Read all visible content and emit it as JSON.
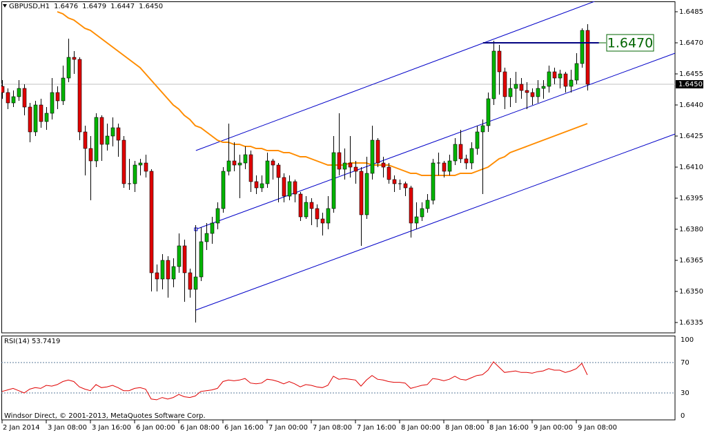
{
  "chart_data": {
    "type": "candlestick",
    "symbol": "GBPUSD,H1",
    "header_values": [
      "1.6476",
      "1.6479",
      "1.6447",
      "1.6450"
    ],
    "categories": [
      "2 Jan 2014",
      null,
      null,
      null,
      null,
      null,
      null,
      null,
      "3 Jan 08:00",
      null,
      null,
      null,
      null,
      null,
      null,
      null,
      "3 Jan 16:00",
      null,
      null,
      null,
      null,
      null,
      null,
      null,
      "6 Jan 00:00",
      null,
      null,
      null,
      null,
      null,
      null,
      null,
      "6 Jan 08:00",
      null,
      null,
      null,
      null,
      null,
      null,
      null,
      "6 Jan 16:00",
      null,
      null,
      null,
      null,
      null,
      null,
      null,
      "7 Jan 00:00",
      null,
      null,
      null,
      null,
      null,
      null,
      null,
      "7 Jan 08:00",
      null,
      null,
      null,
      null,
      null,
      null,
      null,
      "7 Jan 16:00",
      null,
      null,
      null,
      null,
      null,
      null,
      null,
      "8 Jan 00:00",
      null,
      null,
      null,
      null,
      null,
      null,
      null,
      "8 Jan 08:00",
      null,
      null,
      null,
      null,
      null,
      null,
      null,
      "8 Jan 16:00",
      null,
      null,
      null,
      null,
      null,
      null,
      null,
      "9 Jan 00:00",
      null,
      null,
      null,
      null,
      null,
      null,
      null,
      "9 Jan 08:00",
      null,
      null
    ],
    "candles": [
      [
        1.6449,
        1.6452,
        1.6443,
        1.6446
      ],
      [
        1.6446,
        1.6448,
        1.6438,
        1.6441
      ],
      [
        1.6441,
        1.6447,
        1.6439,
        1.6444
      ],
      [
        1.6444,
        1.6452,
        1.6442,
        1.6448
      ],
      [
        1.6448,
        1.645,
        1.6435,
        1.6439
      ],
      [
        1.6439,
        1.6441,
        1.6422,
        1.6427
      ],
      [
        1.6427,
        1.6442,
        1.6425,
        1.644
      ],
      [
        1.644,
        1.6443,
        1.6429,
        1.6432
      ],
      [
        1.6432,
        1.6439,
        1.6428,
        1.6436
      ],
      [
        1.6436,
        1.6453,
        1.6433,
        1.6446
      ],
      [
        1.6446,
        1.6449,
        1.6438,
        1.6442
      ],
      [
        1.6442,
        1.6459,
        1.644,
        1.6453
      ],
      [
        1.6453,
        1.6472,
        1.6451,
        1.6463
      ],
      [
        1.6463,
        1.6466,
        1.6455,
        1.6462
      ],
      [
        1.6462,
        1.6463,
        1.6423,
        1.6427
      ],
      [
        1.6427,
        1.643,
        1.6406,
        1.6419
      ],
      [
        1.6419,
        1.6425,
        1.6394,
        1.6413
      ],
      [
        1.6413,
        1.6436,
        1.641,
        1.6434
      ],
      [
        1.6434,
        1.6435,
        1.6413,
        1.6421
      ],
      [
        1.6421,
        1.6431,
        1.6418,
        1.6425
      ],
      [
        1.6425,
        1.6434,
        1.642,
        1.6429
      ],
      [
        1.6429,
        1.6431,
        1.6415,
        1.6423
      ],
      [
        1.6423,
        1.6425,
        1.64,
        1.6402
      ],
      [
        1.6402,
        1.6414,
        1.6399,
        1.6402
      ],
      [
        1.6402,
        1.6413,
        1.6398,
        1.6411
      ],
      [
        1.6411,
        1.6414,
        1.6406,
        1.6412
      ],
      [
        1.6412,
        1.6416,
        1.6405,
        1.6408
      ],
      [
        1.6408,
        1.6409,
        1.635,
        1.6359
      ],
      [
        1.6359,
        1.6363,
        1.635,
        1.6356
      ],
      [
        1.6356,
        1.6368,
        1.6351,
        1.6365
      ],
      [
        1.6365,
        1.6367,
        1.6347,
        1.6356
      ],
      [
        1.6356,
        1.6366,
        1.6352,
        1.6362
      ],
      [
        1.6362,
        1.6378,
        1.6359,
        1.6372
      ],
      [
        1.6372,
        1.6375,
        1.6345,
        1.6359
      ],
      [
        1.6359,
        1.6361,
        1.6347,
        1.6351
      ],
      [
        1.6351,
        1.6382,
        1.6335,
        1.6357
      ],
      [
        1.6357,
        1.6381,
        1.6355,
        1.6374
      ],
      [
        1.6374,
        1.6383,
        1.637,
        1.6378
      ],
      [
        1.6378,
        1.6386,
        1.6373,
        1.6383
      ],
      [
        1.6383,
        1.6393,
        1.638,
        1.639
      ],
      [
        1.639,
        1.641,
        1.6388,
        1.6408
      ],
      [
        1.6408,
        1.6431,
        1.6406,
        1.6413
      ],
      [
        1.6413,
        1.6422,
        1.6408,
        1.6411
      ],
      [
        1.6411,
        1.6416,
        1.6395,
        1.6412
      ],
      [
        1.6412,
        1.642,
        1.6409,
        1.6416
      ],
      [
        1.6416,
        1.6418,
        1.6398,
        1.6403
      ],
      [
        1.6403,
        1.6406,
        1.6397,
        1.64
      ],
      [
        1.64,
        1.6406,
        1.6398,
        1.6402
      ],
      [
        1.6402,
        1.6417,
        1.64,
        1.6413
      ],
      [
        1.6413,
        1.6414,
        1.6404,
        1.6411
      ],
      [
        1.6411,
        1.6412,
        1.6393,
        1.6405
      ],
      [
        1.6405,
        1.6407,
        1.6393,
        1.6396
      ],
      [
        1.6396,
        1.6406,
        1.6394,
        1.6403
      ],
      [
        1.6403,
        1.6404,
        1.6393,
        1.6397
      ],
      [
        1.6397,
        1.6398,
        1.6384,
        1.6386
      ],
      [
        1.6386,
        1.6396,
        1.6385,
        1.6393
      ],
      [
        1.6393,
        1.6395,
        1.6382,
        1.639
      ],
      [
        1.639,
        1.6392,
        1.6381,
        1.6385
      ],
      [
        1.6385,
        1.6388,
        1.6377,
        1.6383
      ],
      [
        1.6383,
        1.6396,
        1.638,
        1.639
      ],
      [
        1.639,
        1.6425,
        1.6388,
        1.6417
      ],
      [
        1.6417,
        1.6436,
        1.6406,
        1.6409
      ],
      [
        1.6409,
        1.6419,
        1.6404,
        1.6412
      ],
      [
        1.6412,
        1.6425,
        1.6405,
        1.641
      ],
      [
        1.641,
        1.6413,
        1.6402,
        1.6408
      ],
      [
        1.6408,
        1.641,
        1.6372,
        1.6387
      ],
      [
        1.6387,
        1.6415,
        1.6385,
        1.6407
      ],
      [
        1.6407,
        1.643,
        1.6404,
        1.6423
      ],
      [
        1.6423,
        1.6424,
        1.641,
        1.6412
      ],
      [
        1.6412,
        1.6415,
        1.6405,
        1.641
      ],
      [
        1.641,
        1.6412,
        1.6402,
        1.6404
      ],
      [
        1.6404,
        1.6406,
        1.6398,
        1.6402
      ],
      [
        1.6402,
        1.6404,
        1.6399,
        1.6402
      ],
      [
        1.6402,
        1.6403,
        1.6396,
        1.64
      ],
      [
        1.64,
        1.6401,
        1.6376,
        1.6383
      ],
      [
        1.6383,
        1.6393,
        1.638,
        1.6386
      ],
      [
        1.6386,
        1.6393,
        1.6384,
        1.639
      ],
      [
        1.639,
        1.6397,
        1.6388,
        1.6394
      ],
      [
        1.6394,
        1.6414,
        1.6392,
        1.6412
      ],
      [
        1.6412,
        1.6417,
        1.6406,
        1.6412
      ],
      [
        1.6412,
        1.6413,
        1.6405,
        1.6408
      ],
      [
        1.6408,
        1.6416,
        1.6406,
        1.6413
      ],
      [
        1.6413,
        1.6424,
        1.6411,
        1.6421
      ],
      [
        1.6421,
        1.6428,
        1.6412,
        1.6414
      ],
      [
        1.6414,
        1.6416,
        1.6409,
        1.6412
      ],
      [
        1.6412,
        1.6422,
        1.6409,
        1.6419
      ],
      [
        1.6419,
        1.643,
        1.6416,
        1.6427
      ],
      [
        1.6427,
        1.6433,
        1.6397,
        1.643
      ],
      [
        1.643,
        1.6446,
        1.6427,
        1.6443
      ],
      [
        1.6443,
        1.6471,
        1.644,
        1.6466
      ],
      [
        1.6466,
        1.6469,
        1.6445,
        1.6456
      ],
      [
        1.6456,
        1.6458,
        1.6438,
        1.6444
      ],
      [
        1.6444,
        1.6453,
        1.6439,
        1.6448
      ],
      [
        1.6448,
        1.6456,
        1.6441,
        1.645
      ],
      [
        1.645,
        1.6453,
        1.6443,
        1.6447
      ],
      [
        1.6447,
        1.6451,
        1.6438,
        1.6446
      ],
      [
        1.6446,
        1.6448,
        1.644,
        1.6444
      ],
      [
        1.6444,
        1.6452,
        1.6441,
        1.6448
      ],
      [
        1.6448,
        1.6452,
        1.6443,
        1.6449
      ],
      [
        1.6449,
        1.6459,
        1.6446,
        1.6456
      ],
      [
        1.6456,
        1.6458,
        1.645,
        1.6453
      ],
      [
        1.6453,
        1.6457,
        1.6448,
        1.6455
      ],
      [
        1.6455,
        1.6456,
        1.6446,
        1.6449
      ],
      [
        1.6449,
        1.6457,
        1.6446,
        1.6452
      ],
      [
        1.6452,
        1.6465,
        1.645,
        1.646
      ],
      [
        1.646,
        1.6477,
        1.6458,
        1.6476
      ],
      [
        1.6476,
        1.6479,
        1.6447,
        1.645
      ]
    ],
    "colors": {
      "up": "#00b400",
      "down": "#e00000",
      "wick": "#000000"
    },
    "ylim": [
      1.633,
      1.649
    ],
    "yticks": [
      1.6485,
      {
        "value": 1.647,
        "label": "1.6470"
      },
      1.6455,
      {
        "value": 1.644,
        "label": "1.6440"
      },
      1.6425,
      {
        "value": 1.641,
        "label": "1.6410"
      },
      1.6395,
      {
        "value": 1.638,
        "label": "1.6380"
      },
      1.6365,
      {
        "value": 1.635,
        "label": "1.6350"
      },
      1.6335
    ],
    "moving_average": {
      "color": "#ff8c00",
      "values": [
        null,
        null,
        null,
        null,
        null,
        null,
        null,
        null,
        null,
        null,
        1.6485,
        1.6484,
        1.6482,
        1.6481,
        1.6479,
        1.6477,
        1.6476,
        1.6474,
        1.6472,
        1.647,
        1.6468,
        1.6466,
        1.6464,
        1.6462,
        1.646,
        1.6458,
        1.6455,
        1.6452,
        1.6449,
        1.6446,
        1.6443,
        1.644,
        1.6438,
        1.6435,
        1.6433,
        1.643,
        1.6429,
        1.6427,
        1.6425,
        1.6423,
        1.6422,
        1.6422,
        1.6421,
        1.6421,
        1.642,
        1.642,
        1.6419,
        1.6419,
        1.6418,
        1.6418,
        1.6418,
        1.6417,
        1.6417,
        1.6416,
        1.6415,
        1.6415,
        1.6414,
        1.6413,
        1.6412,
        1.6411,
        1.6411,
        1.6411,
        1.6411,
        1.6412,
        1.6412,
        1.6412,
        1.6412,
        1.6411,
        1.6411,
        1.6411,
        1.6411,
        1.641,
        1.6409,
        1.6408,
        1.6407,
        1.6407,
        1.6406,
        1.6406,
        1.6406,
        1.6406,
        1.6406,
        1.6406,
        1.6406,
        1.6407,
        1.6407,
        1.6407,
        1.6408,
        1.6409,
        1.641,
        1.6412,
        1.6414,
        1.6415,
        1.6417,
        1.6418,
        1.6419,
        1.642,
        1.6421,
        1.6422,
        1.6423,
        1.6424,
        1.6425,
        1.6426,
        1.6427,
        1.6428,
        1.6429,
        1.643,
        1.6431
      ]
    },
    "channel": {
      "color": "#0000c8",
      "lines": [
        [
          [
            35.1,
            1.6418
          ],
          [
            107.3,
            1.649
          ]
        ],
        [
          [
            35.1,
            1.638
          ],
          [
            121.9,
            1.6465
          ]
        ],
        [
          [
            35.1,
            1.6341
          ],
          [
            121.9,
            1.6426
          ]
        ]
      ]
    },
    "level": {
      "value": 1.647,
      "label": "1.6470",
      "from": 87.1,
      "to": 108.1,
      "color": "#000080",
      "label_color": "#006400"
    },
    "bid": {
      "value": 1.645,
      "label": "1.6450"
    },
    "indicator": {
      "type": "line",
      "title": "RSI(14) 53.7419",
      "color": "#e00000",
      "ylim": [
        0,
        100
      ],
      "yticks": [
        100,
        70,
        30,
        0
      ],
      "levels": [
        70,
        30
      ],
      "values": [
        32,
        34,
        36,
        33,
        30,
        35,
        37,
        36,
        40,
        39,
        41,
        45,
        47,
        45,
        38,
        35,
        33,
        41,
        37,
        38,
        40,
        37,
        33,
        33,
        36,
        37,
        35,
        22,
        21,
        24,
        22,
        24,
        28,
        25,
        24,
        26,
        32,
        33,
        34,
        36,
        45,
        47,
        46,
        47,
        49,
        43,
        42,
        43,
        48,
        47,
        45,
        42,
        45,
        42,
        38,
        41,
        40,
        38,
        37,
        40,
        52,
        48,
        49,
        48,
        47,
        39,
        47,
        53,
        48,
        47,
        45,
        44,
        44,
        43,
        36,
        38,
        40,
        41,
        49,
        48,
        46,
        48,
        52,
        48,
        47,
        50,
        53,
        54,
        60,
        71,
        64,
        57,
        58,
        59,
        57,
        57,
        56,
        58,
        59,
        62,
        60,
        60,
        57,
        59,
        62,
        69,
        53.7419
      ]
    },
    "copyright": "Windsor Direct, © 2001-2013, MetaQuotes Software Corp."
  }
}
